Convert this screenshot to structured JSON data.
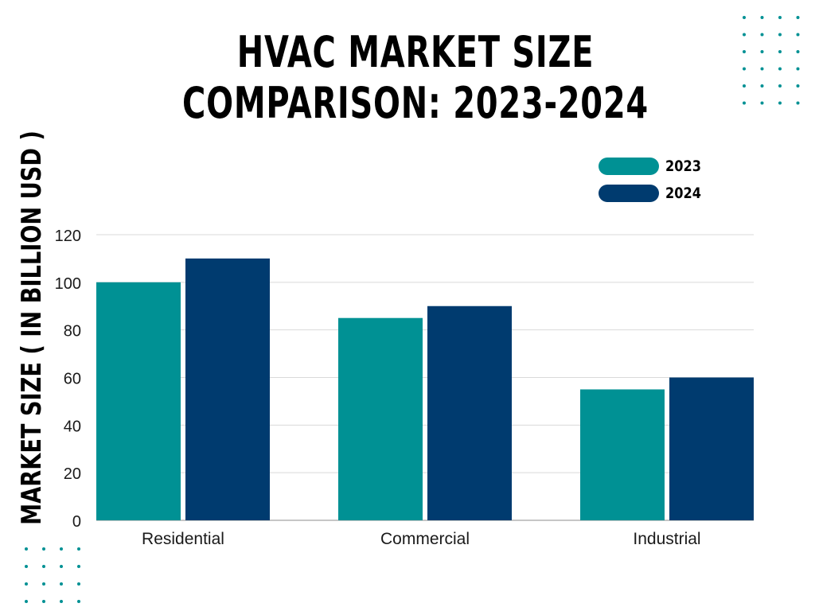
{
  "chart_data": {
    "type": "bar",
    "title_lines": [
      "HVAC MARKET SIZE",
      "COMPARISON: 2023-2024"
    ],
    "xlabel": "",
    "ylabel": "MARKET SIZE ( IN BILLION USD )",
    "categories": [
      "Residential",
      "Commercial",
      "Industrial"
    ],
    "series": [
      {
        "name": "2023",
        "color": "#009194",
        "values": [
          100,
          85,
          55
        ]
      },
      {
        "name": "2024",
        "color": "#003B6F",
        "values": [
          110,
          90,
          60
        ]
      }
    ],
    "ylim": [
      0,
      120
    ],
    "yticks": [
      0,
      20,
      40,
      60,
      80,
      100,
      120
    ],
    "grid": true,
    "legend_position": "top-right"
  },
  "decorations": {
    "dot_color": "#009194",
    "dot_grid_icon": "dot-grid-icon"
  }
}
